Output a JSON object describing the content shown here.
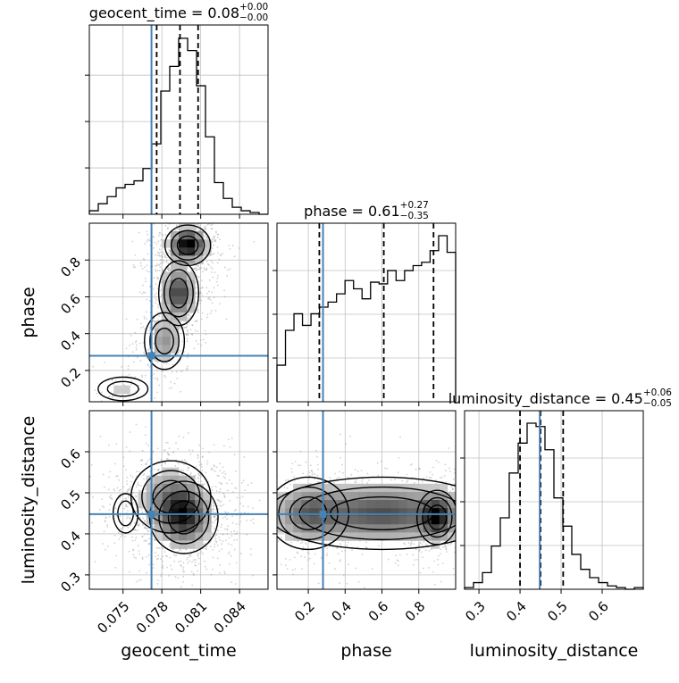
{
  "chart_data": {
    "type": "corner",
    "parameters": [
      {
        "name": "geocent_time",
        "range": [
          0.0724,
          0.0862
        ],
        "ticks": [
          0.075,
          0.078,
          0.081,
          0.084
        ],
        "tick_labels": [
          "0.075",
          "0.078",
          "0.081",
          "0.084"
        ],
        "truth": 0.0772,
        "quantiles": [
          0.0776,
          0.0794,
          0.0808
        ],
        "title": {
          "main": "geocent_time = 0.08",
          "plus": "+0.00",
          "minus": "−0.00"
        },
        "hist": [
          0.02,
          0.06,
          0.1,
          0.15,
          0.17,
          0.19,
          0.26,
          0.4,
          0.7,
          0.84,
          1.0,
          0.93,
          0.73,
          0.44,
          0.18,
          0.09,
          0.04,
          0.02,
          0.01,
          0.0
        ]
      },
      {
        "name": "phase",
        "range": [
          0.03,
          1.0
        ],
        "ticks": [
          0.2,
          0.4,
          0.6,
          0.8
        ],
        "tick_labels": [
          "0.2",
          "0.4",
          "0.6",
          "0.8"
        ],
        "truth": 0.28,
        "quantiles": [
          0.26,
          0.61,
          0.88
        ],
        "title": {
          "main": "phase = 0.61",
          "plus": "+0.27",
          "minus": "−0.35"
        },
        "hist": [
          0.22,
          0.43,
          0.53,
          0.46,
          0.53,
          0.57,
          0.6,
          0.65,
          0.73,
          0.68,
          0.62,
          0.72,
          0.71,
          0.79,
          0.73,
          0.79,
          0.82,
          0.84,
          0.91,
          1.0,
          0.9
        ]
      },
      {
        "name": "luminosity_distance",
        "range": [
          0.265,
          0.7
        ],
        "ticks": [
          0.3,
          0.4,
          0.5,
          0.6
        ],
        "tick_labels": [
          "0.3",
          "0.4",
          "0.5",
          "0.6"
        ],
        "truth": 0.448,
        "quantiles": [
          0.4,
          0.45,
          0.505
        ],
        "title": {
          "main": "luminosity_distance = 0.45",
          "plus": "+0.06",
          "minus": "−0.05"
        },
        "hist": [
          0.01,
          0.04,
          0.1,
          0.26,
          0.43,
          0.7,
          0.88,
          1.0,
          0.98,
          0.84,
          0.55,
          0.38,
          0.21,
          0.12,
          0.07,
          0.04,
          0.02,
          0.01,
          0.0,
          0.01
        ]
      }
    ],
    "axis_labels": {
      "x": [
        "geocent_time",
        "phase",
        "luminosity_distance"
      ],
      "y": [
        "phase",
        "luminosity_distance"
      ]
    },
    "correlation": [
      {
        "x": 0,
        "y": 1,
        "modes": [
          {
            "mx": 0.08,
            "my": 0.88,
            "sx": 0.0008,
            "sy": 0.05,
            "w": 1.0
          },
          {
            "mx": 0.0793,
            "my": 0.62,
            "sx": 0.0007,
            "sy": 0.08,
            "w": 0.7
          },
          {
            "mx": 0.0782,
            "my": 0.36,
            "sx": 0.0007,
            "sy": 0.07,
            "w": 0.35
          },
          {
            "mx": 0.075,
            "my": 0.1,
            "sx": 0.0012,
            "sy": 0.04,
            "w": 0.12
          }
        ]
      },
      {
        "x": 0,
        "y": 2,
        "modes": [
          {
            "mx": 0.0797,
            "my": 0.44,
            "sx": 0.0012,
            "sy": 0.04,
            "w": 1.0
          },
          {
            "mx": 0.0787,
            "my": 0.49,
            "sx": 0.0014,
            "sy": 0.04,
            "w": 0.5
          },
          {
            "mx": 0.0752,
            "my": 0.45,
            "sx": 0.0006,
            "sy": 0.03,
            "w": 0.1
          }
        ]
      },
      {
        "x": 1,
        "y": 2,
        "modes": [
          {
            "mx": 0.9,
            "my": 0.44,
            "sx": 0.05,
            "sy": 0.03,
            "w": 1.0
          },
          {
            "mx": 0.6,
            "my": 0.45,
            "sx": 0.28,
            "sy": 0.04,
            "w": 1.0
          },
          {
            "mx": 0.2,
            "my": 0.45,
            "sx": 0.1,
            "sy": 0.04,
            "w": 0.6
          }
        ]
      }
    ],
    "colors": {
      "truth": "#4682b4",
      "hist": "#000000",
      "grid": "#c0c0c0",
      "points": "#9a9a9a",
      "density": "#000000"
    },
    "grid": true
  }
}
